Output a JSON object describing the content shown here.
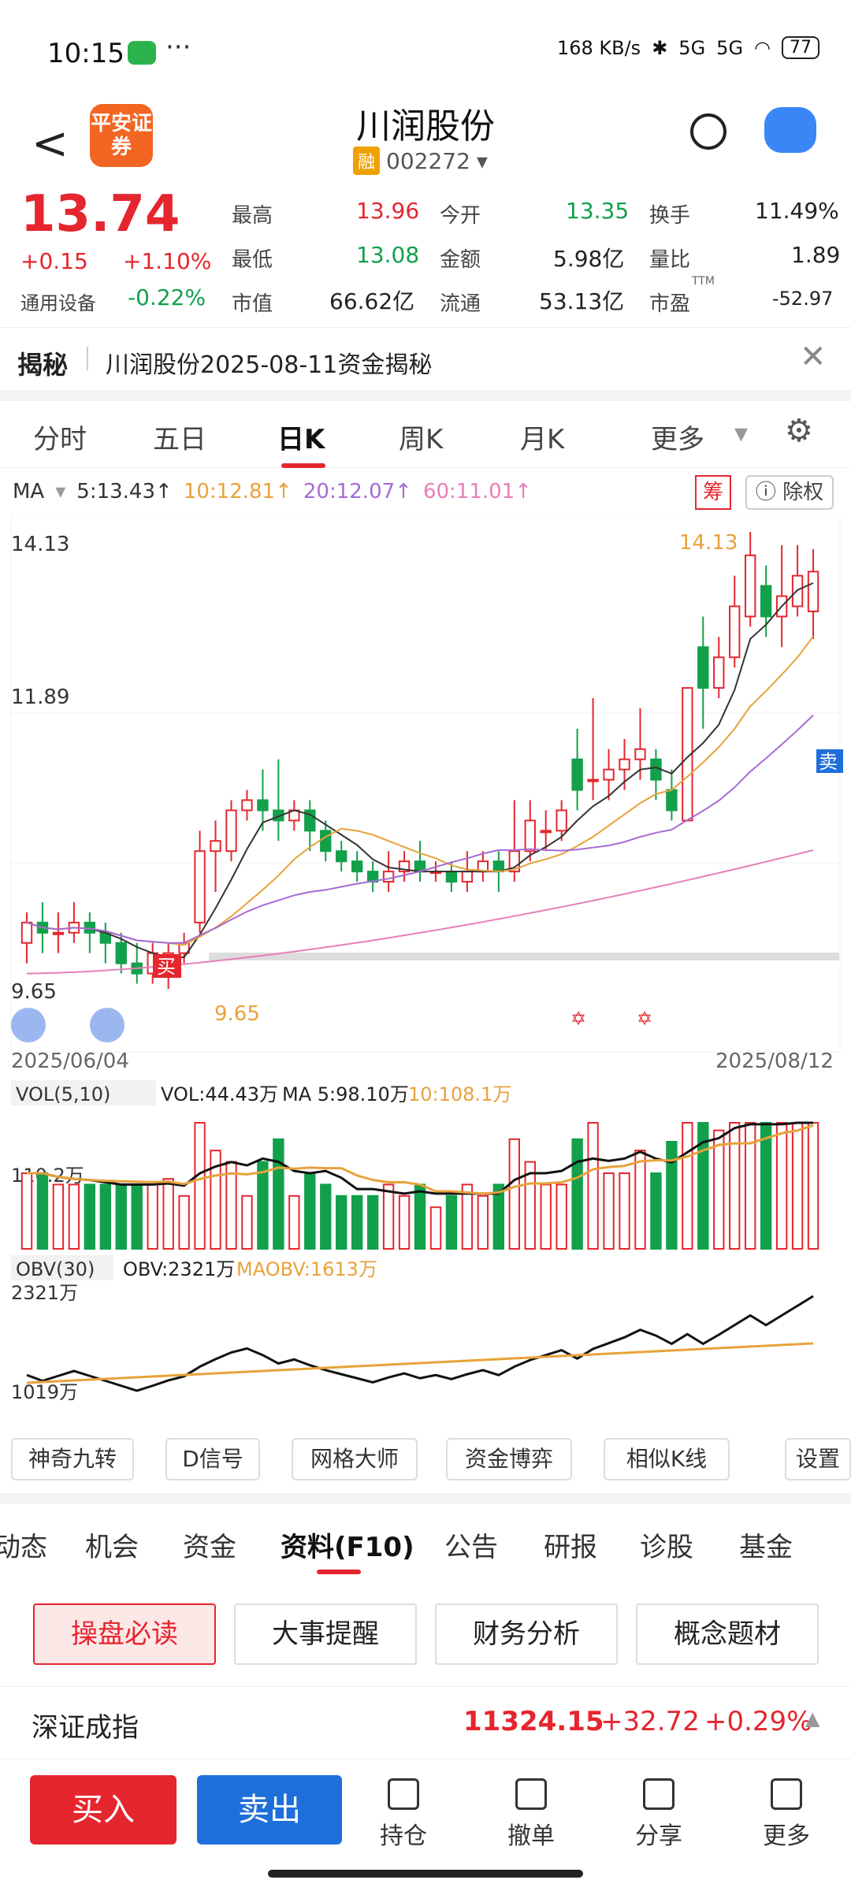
{
  "status": {
    "time": "10:15",
    "net_speed": "168 KB/s",
    "signal1": "5G",
    "signal2": "5G",
    "battery": "77"
  },
  "header": {
    "back": "<",
    "logo_text": "平安证券",
    "title": "川润股份",
    "rong_badge": "融",
    "code": "002272"
  },
  "quote": {
    "price": "13.74",
    "change": "+0.15",
    "change_pct": "+1.10%",
    "sector": "通用设备",
    "sector_pct": "-0.22%",
    "high_label": "最高",
    "high": "13.96",
    "open_label": "今开",
    "open": "13.35",
    "turnover_label": "换手",
    "turnover": "11.49%",
    "low_label": "最低",
    "low": "13.08",
    "amount_label": "金额",
    "amount": "5.98亿",
    "volratio_label": "量比",
    "volratio": "1.89",
    "mcap_label": "市值",
    "mcap": "66.62亿",
    "float_label": "流通",
    "float": "53.13亿",
    "pe_label": "市盈",
    "pe_sup": "TTM",
    "pe": "-52.97"
  },
  "reveal": {
    "title": "揭秘",
    "subtitle": "川润股份2025-08-11资金揭秘"
  },
  "ktabs": [
    "分时",
    "五日",
    "日K",
    "周K",
    "月K",
    "更多"
  ],
  "ma": {
    "label": "MA",
    "ma5": "5:13.43↑",
    "ma10": "10:12.81↑",
    "ma20": "20:12.07↑",
    "ma60": "60:11.01↑"
  },
  "chart_buttons": {
    "chou": "筹",
    "chuquan": "除权"
  },
  "chart_labels": {
    "ymax": "14.13",
    "ymid": "11.89",
    "ymin": "9.65",
    "max_mark": "14.13",
    "min_mark": "9.65",
    "buy_mark": "买",
    "sell_mark": "卖",
    "date_start": "2025/06/04",
    "date_end": "2025/08/12"
  },
  "vol": {
    "label": "VOL(5,10)",
    "vol": "VOL:44.43万",
    "ma5": "MA 5:98.10万",
    "ma10": "10:108.1万",
    "axis": "110.2万"
  },
  "obv": {
    "label": "OBV(30)",
    "obv": "OBV:2321万",
    "maobv": "MAOBV:1613万",
    "ax_top": "2321万",
    "ax_bot": "1019万"
  },
  "tools": [
    "神奇九转",
    "D信号",
    "网格大师",
    "资金博弈",
    "相似K线",
    "设置"
  ],
  "btabs": [
    "动态",
    "机会",
    "资金",
    "资料(F10)",
    "公告",
    "研报",
    "诊股",
    "基金"
  ],
  "f10_buttons": [
    "操盘必读",
    "大事提醒",
    "财务分析",
    "概念题材"
  ],
  "index": {
    "name": "深证成指",
    "value": "11324.15",
    "change": "+32.72",
    "pct": "+0.29%"
  },
  "nav": {
    "buy": "买入",
    "sell": "卖出",
    "hold": "持仓",
    "cancel": "撤单",
    "share": "分享",
    "more": "更多"
  },
  "chart_data": {
    "type": "candlestick",
    "date_range": [
      "2025/06/04",
      "2025/08/12"
    ],
    "ylim": [
      9.65,
      14.13
    ],
    "ma_last": {
      "ma5": 13.43,
      "ma10": 12.81,
      "ma20": 12.07,
      "ma60": 11.01
    },
    "max": 14.13,
    "min": 9.65,
    "candles_approx": [
      [
        10.1,
        10.3,
        9.9,
        10.4
      ],
      [
        10.3,
        10.2,
        10.0,
        10.5
      ],
      [
        10.2,
        10.2,
        10.0,
        10.4
      ],
      [
        10.2,
        10.3,
        10.1,
        10.5
      ],
      [
        10.3,
        10.2,
        10.0,
        10.4
      ],
      [
        10.2,
        10.1,
        9.9,
        10.3
      ],
      [
        10.1,
        9.9,
        9.8,
        10.2
      ],
      [
        9.9,
        9.8,
        9.7,
        10.1
      ],
      [
        9.8,
        10.0,
        9.7,
        10.1
      ],
      [
        9.9,
        10.0,
        9.65,
        10.1
      ],
      [
        10.0,
        10.1,
        9.9,
        10.2
      ],
      [
        10.3,
        11.0,
        10.2,
        11.2
      ],
      [
        11.0,
        11.1,
        10.6,
        11.3
      ],
      [
        11.0,
        11.4,
        10.9,
        11.5
      ],
      [
        11.4,
        11.5,
        11.3,
        11.6
      ],
      [
        11.5,
        11.4,
        11.2,
        11.8
      ],
      [
        11.4,
        11.3,
        11.1,
        11.9
      ],
      [
        11.3,
        11.4,
        11.2,
        11.5
      ],
      [
        11.4,
        11.2,
        11.0,
        11.5
      ],
      [
        11.2,
        11.0,
        10.9,
        11.3
      ],
      [
        11.0,
        10.9,
        10.8,
        11.1
      ],
      [
        10.9,
        10.8,
        10.7,
        11.0
      ],
      [
        10.8,
        10.7,
        10.6,
        10.9
      ],
      [
        10.7,
        10.8,
        10.6,
        11.0
      ],
      [
        10.8,
        10.9,
        10.7,
        11.0
      ],
      [
        10.9,
        10.8,
        10.7,
        11.1
      ],
      [
        10.8,
        10.8,
        10.7,
        10.9
      ],
      [
        10.8,
        10.7,
        10.6,
        10.9
      ],
      [
        10.7,
        10.8,
        10.6,
        11.0
      ],
      [
        10.8,
        10.9,
        10.7,
        11.0
      ],
      [
        10.9,
        10.8,
        10.6,
        11.0
      ],
      [
        10.8,
        11.0,
        10.7,
        11.5
      ],
      [
        11.0,
        11.3,
        10.9,
        11.5
      ],
      [
        11.2,
        11.2,
        11.0,
        11.4
      ],
      [
        11.2,
        11.4,
        11.1,
        11.5
      ],
      [
        11.9,
        11.6,
        11.4,
        12.2
      ],
      [
        11.7,
        11.7,
        11.5,
        12.5
      ],
      [
        11.7,
        11.8,
        11.5,
        12.0
      ],
      [
        11.8,
        11.9,
        11.6,
        12.1
      ],
      [
        11.9,
        12.0,
        11.7,
        12.4
      ],
      [
        11.9,
        11.7,
        11.5,
        12.0
      ],
      [
        11.6,
        11.4,
        11.3,
        11.8
      ],
      [
        11.3,
        12.6,
        11.3,
        12.6
      ],
      [
        13.0,
        12.6,
        12.2,
        13.3
      ],
      [
        12.6,
        12.9,
        12.5,
        13.1
      ],
      [
        12.9,
        13.4,
        12.8,
        13.7
      ],
      [
        13.3,
        13.9,
        13.2,
        14.13
      ],
      [
        13.6,
        13.3,
        13.1,
        13.8
      ],
      [
        13.3,
        13.5,
        13.0,
        14.0
      ],
      [
        13.4,
        13.7,
        13.3,
        14.0
      ],
      [
        13.35,
        13.74,
        13.08,
        13.96
      ]
    ]
  }
}
